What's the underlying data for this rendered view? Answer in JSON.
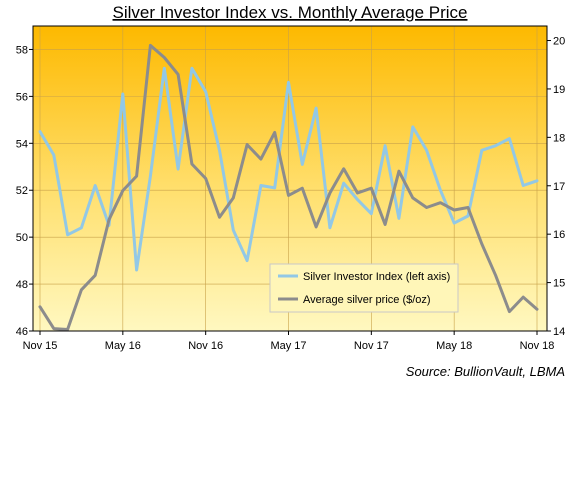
{
  "chart_data": {
    "type": "line",
    "title": "Silver Investor Index vs. Monthly Average Price",
    "source": "Source: BullionVault, LBMA",
    "x_tick_labels": [
      "Nov 15",
      "May 16",
      "Nov 16",
      "May 17",
      "Nov 17",
      "May 18",
      "Nov 18"
    ],
    "x": [
      "Nov 15",
      "Dec 15",
      "Jan 16",
      "Feb 16",
      "Mar 16",
      "Apr 16",
      "May 16",
      "Jun 16",
      "Jul 16",
      "Aug 16",
      "Sep 16",
      "Oct 16",
      "Nov 16",
      "Dec 16",
      "Jan 17",
      "Feb 17",
      "Mar 17",
      "Apr 17",
      "May 17",
      "Jun 17",
      "Jul 17",
      "Aug 17",
      "Sep 17",
      "Oct 17",
      "Nov 17",
      "Dec 17",
      "Jan 18",
      "Feb 18",
      "Mar 18",
      "Apr 18",
      "May 18",
      "Jun 18",
      "Jul 18",
      "Aug 18",
      "Sep 18",
      "Oct 18",
      "Nov 18"
    ],
    "y_left": {
      "min": 46,
      "max": 59,
      "ticks": [
        46,
        48,
        50,
        52,
        54,
        56,
        58
      ]
    },
    "y_right": {
      "min": 14,
      "max": 20.3,
      "ticks": [
        14,
        15,
        16,
        17,
        18,
        19,
        20
      ]
    },
    "series": [
      {
        "name": "Silver Investor Index (left axis)",
        "axis": "left",
        "color": "#92c8e6",
        "values": [
          54.5,
          53.5,
          50.1,
          50.4,
          52.2,
          50.5,
          56.1,
          48.6,
          52.6,
          57.2,
          52.9,
          57.2,
          56.2,
          53.7,
          50.3,
          49.0,
          52.2,
          52.1,
          56.6,
          53.1,
          55.5,
          50.4,
          52.3,
          51.6,
          51.0,
          53.9,
          50.8,
          54.7,
          53.7,
          52.0,
          50.6,
          50.9,
          53.7,
          53.9,
          54.2,
          52.2,
          52.4
        ]
      },
      {
        "name": "Average silver price ($/oz)",
        "axis": "right",
        "color": "#8c8c8c",
        "values": [
          14.5,
          14.05,
          14.03,
          14.85,
          15.15,
          16.3,
          16.9,
          17.2,
          19.9,
          19.65,
          19.3,
          17.45,
          17.15,
          16.35,
          16.75,
          17.85,
          17.55,
          18.1,
          16.8,
          16.95,
          16.15,
          16.85,
          17.35,
          16.85,
          16.95,
          16.2,
          17.3,
          16.75,
          16.55,
          16.65,
          16.5,
          16.55,
          15.8,
          15.15,
          14.4,
          14.7,
          14.45
        ]
      }
    ],
    "legend_position": "lower-right inside plot",
    "background": "gradient yellow-orange",
    "grid": true
  }
}
